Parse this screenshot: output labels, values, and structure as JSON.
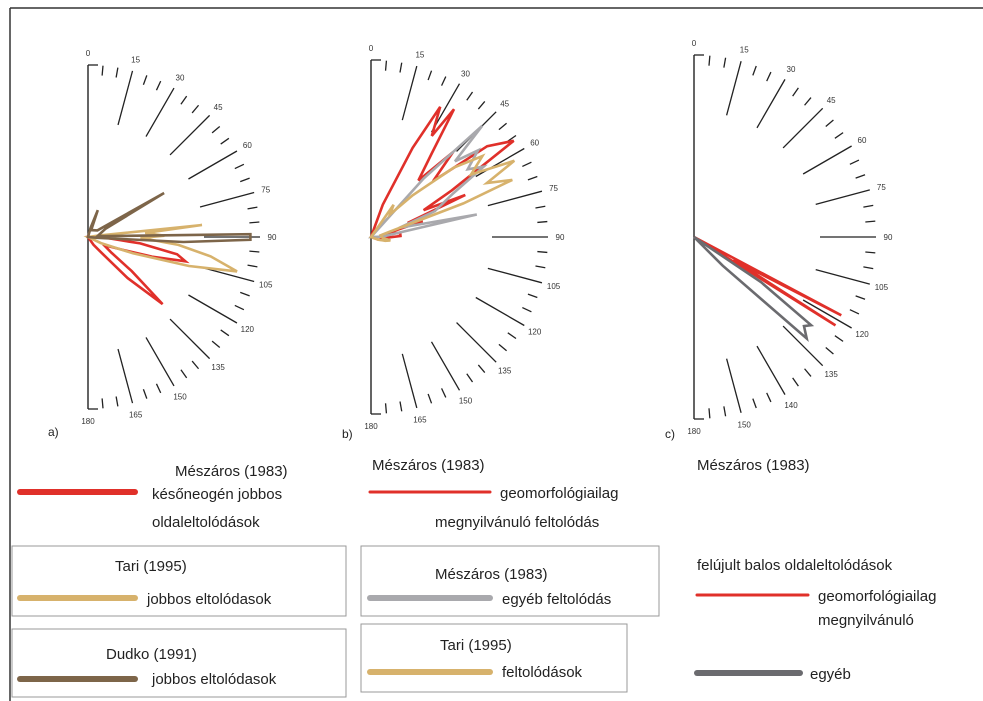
{
  "colors": {
    "meszaros_red": "#e0302a",
    "tari_tan": "#d7b26c",
    "dudko_brown": "#7d6549",
    "meszaros_gray": "#a9a9ad",
    "egyeb_dark": "#6b6b6f"
  },
  "chart_data": [
    {
      "type": "rose",
      "panel": "a)",
      "angle_range": [
        0,
        180
      ],
      "tick_labels": [
        "0",
        "15",
        "30",
        "45",
        "60",
        "75",
        "90",
        "105",
        "120",
        "135",
        "150",
        "165",
        "180"
      ],
      "series": [
        {
          "name": "Mészáros (1983)",
          "color_key": "meszaros_red",
          "points": [
            [
              88,
              4
            ],
            [
              93,
              20
            ],
            [
              97,
              55
            ],
            [
              101,
              95
            ],
            [
              104,
              105
            ],
            [
              107,
              70
            ],
            [
              110,
              40
            ],
            [
              115,
              22
            ],
            [
              118,
              20
            ],
            [
              124,
              30
            ],
            [
              128,
              58
            ],
            [
              132,
              105
            ],
            [
              136,
              60
            ],
            [
              140,
              20
            ],
            [
              145,
              10
            ]
          ]
        },
        {
          "name": "Tari (1995)",
          "color_key": "tari_tan",
          "points": [
            [
              82,
              10
            ],
            [
              84,
              120
            ],
            [
              86,
              60
            ],
            [
              89,
              80
            ],
            [
              91,
              55
            ],
            [
              95,
              95
            ],
            [
              99,
              130
            ],
            [
              103,
              160
            ],
            [
              106,
              110
            ],
            [
              110,
              50
            ],
            [
              115,
              15
            ]
          ]
        },
        {
          "name": "Dudko (1991)",
          "color_key": "dudko_brown",
          "points": [
            [
              16,
              10
            ],
            [
              20,
              30
            ],
            [
              25,
              8
            ],
            [
              55,
              12
            ],
            [
              60,
              92
            ],
            [
              65,
              20
            ],
            [
              85,
              10
            ],
            [
              89,
              170
            ],
            [
              91,
              170
            ],
            [
              93,
              100
            ],
            [
              95,
              10
            ]
          ]
        }
      ]
    },
    {
      "type": "rose",
      "panel": "b)",
      "angle_range": [
        0,
        180
      ],
      "tick_labels": [
        "0",
        "15",
        "30",
        "45",
        "60",
        "75",
        "90",
        "105",
        "120",
        "135",
        "150",
        "165",
        "180"
      ],
      "series": [
        {
          "name": "Mészáros (1983)",
          "color_key": "meszaros_red",
          "points": [
            [
              20,
              35
            ],
            [
              25,
              100
            ],
            [
              28,
              150
            ],
            [
              31,
              120
            ],
            [
              33,
              155
            ],
            [
              36,
              105
            ],
            [
              40,
              75
            ],
            [
              44,
              120
            ],
            [
              48,
              85
            ],
            [
              52,
              150
            ],
            [
              56,
              175
            ],
            [
              60,
              95
            ],
            [
              63,
              60
            ],
            [
              66,
              105
            ],
            [
              69,
              40
            ],
            [
              73,
              55
            ],
            [
              78,
              15
            ],
            [
              82,
              30
            ],
            [
              88,
              30
            ],
            [
              93,
              15
            ],
            [
              100,
              12
            ],
            [
              110,
              8
            ]
          ]
        },
        {
          "name": "Mészáros (1983)",
          "color_key": "meszaros_gray",
          "points": [
            [
              42,
              80
            ],
            [
              45,
              160
            ],
            [
              48,
              115
            ],
            [
              51,
              140
            ],
            [
              55,
              120
            ],
            [
              58,
              135
            ],
            [
              62,
              95
            ],
            [
              68,
              70
            ],
            [
              72,
              30
            ],
            [
              78,
              110
            ],
            [
              83,
              20
            ],
            [
              88,
              12
            ]
          ]
        },
        {
          "name": "Tari (1995)",
          "color_key": "tari_tan",
          "points": [
            [
              35,
              40
            ],
            [
              40,
              30
            ],
            [
              45,
              60
            ],
            [
              50,
              110
            ],
            [
              54,
              140
            ],
            [
              58,
              120
            ],
            [
              62,
              165
            ],
            [
              65,
              130
            ],
            [
              68,
              155
            ],
            [
              70,
              100
            ],
            [
              74,
              20
            ],
            [
              80,
              10
            ],
            [
              95,
              12
            ],
            [
              100,
              20
            ],
            [
              105,
              15
            ],
            [
              110,
              8
            ]
          ]
        }
      ]
    },
    {
      "type": "rose",
      "panel": "c)",
      "angle_range": [
        0,
        180
      ],
      "tick_labels": [
        "0",
        "15",
        "30",
        "45",
        "60",
        "75",
        "90",
        "105",
        "120",
        "135",
        "140",
        "150",
        "180"
      ],
      "series": [
        {
          "name": "felújult balos oldaleltolódások geomorfológiailag megnyilvánuló",
          "color_key": "meszaros_red",
          "points": [
            [
              118,
              165
            ],
            [
              120,
              45
            ],
            [
              122,
              165
            ]
          ]
        },
        {
          "name": "egyéb",
          "color_key": "egyeb_dark",
          "points": [
            [
              124,
              80
            ],
            [
              127,
              145
            ],
            [
              129,
              140
            ],
            [
              132,
              150
            ],
            [
              135,
              40
            ]
          ]
        }
      ]
    }
  ],
  "legend": {
    "col1": [
      {
        "title": "Mészáros (1983)",
        "lines": [
          "későneogén jobbos",
          "oldaleltolódások"
        ]
      },
      {
        "title": "Tari (1995)",
        "lines": [
          "jobbos  eltolódasok"
        ]
      },
      {
        "title": "Dudko (1991)",
        "lines": [
          "jobbos  eltolódasok"
        ]
      }
    ],
    "col2": [
      {
        "title": "Mészáros (1983)",
        "lines": [
          "geomorfológiailag",
          "megnyilvánuló feltolódás"
        ]
      },
      {
        "title": "Mészáros (1983)",
        "lines": [
          "egyéb feltolódás"
        ]
      },
      {
        "title": "Tari (1995)",
        "lines": [
          "feltolódások"
        ]
      }
    ],
    "col3": {
      "title": "Mészáros (1983)",
      "subtitle": "felújult balos   oldaleltolódások",
      "red_lines": [
        "geomorfológiailag",
        "megnyilvánuló"
      ],
      "dark_label": "egyéb"
    }
  }
}
